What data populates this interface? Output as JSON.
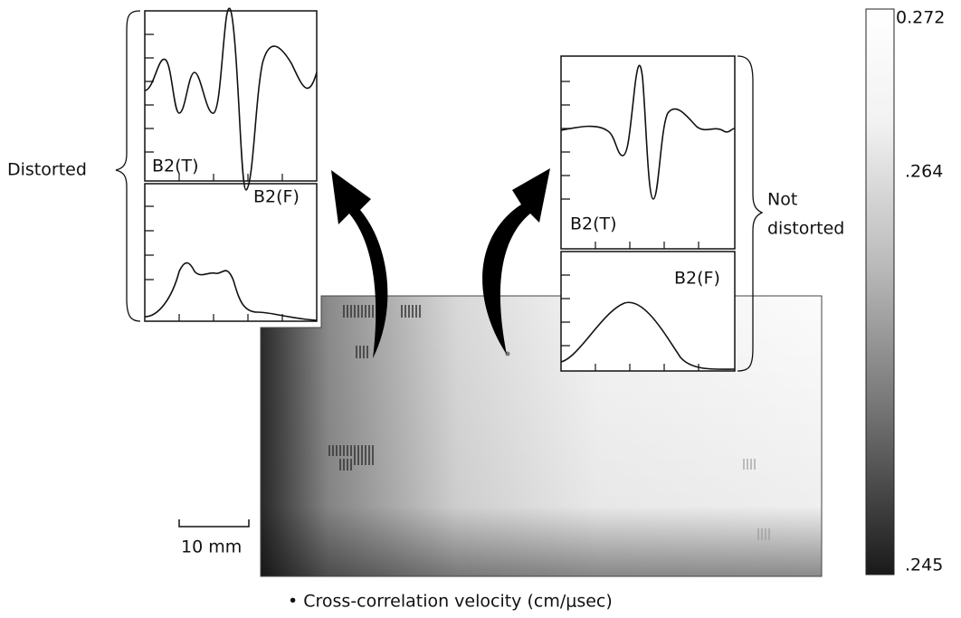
{
  "labels": {
    "distorted": "Distorted",
    "not_distorted": [
      "Not",
      "distorted"
    ]
  },
  "panels": [
    {
      "time_label": "B2(T)",
      "freq_label": "B2(F)"
    },
    {
      "time_label": "B2(T)",
      "freq_label": "B2(F)"
    }
  ],
  "colorbar": {
    "ticks": [
      "0.272",
      ".264",
      ".245"
    ]
  },
  "scale_bar": "10 mm",
  "caption": "• Cross-correlation velocity (cm/μsec)"
}
